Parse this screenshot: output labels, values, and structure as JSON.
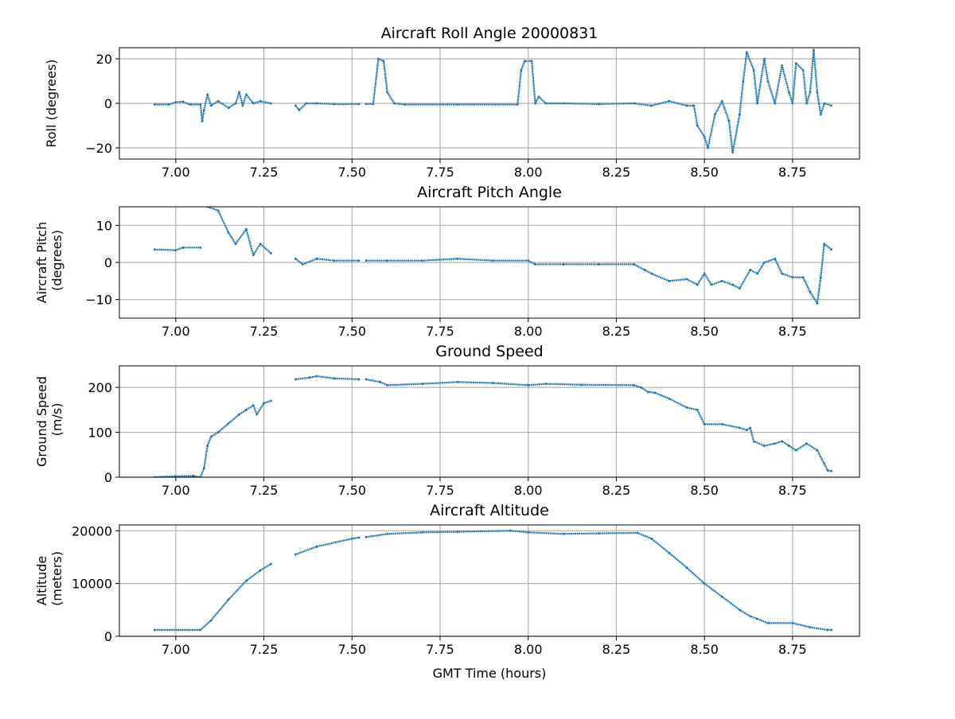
{
  "chart_data": [
    {
      "type": "scatter",
      "title": "Aircraft Roll Angle 20000831",
      "xlabel": "",
      "ylabel": "Roll (degrees)",
      "xlim": [
        6.84,
        8.94
      ],
      "ylim": [
        -25,
        25
      ],
      "xticks": [
        7.0,
        7.25,
        7.5,
        7.75,
        8.0,
        8.25,
        8.5,
        8.75
      ],
      "xtick_labels": [
        "7.00",
        "7.25",
        "7.50",
        "7.75",
        "8.00",
        "8.25",
        "8.50",
        "8.75"
      ],
      "yticks": [
        -20,
        0,
        20
      ],
      "ytick_labels": [
        "−20",
        "0",
        "20"
      ],
      "grid": true,
      "color": "#1f77b4",
      "points": [
        [
          6.94,
          -0.5
        ],
        [
          6.98,
          -0.5
        ],
        [
          7.0,
          0.5
        ],
        [
          7.02,
          0.8
        ],
        [
          7.04,
          -0.5
        ],
        [
          7.07,
          -0.5
        ],
        [
          7.075,
          -8
        ],
        [
          7.08,
          -3
        ],
        [
          7.09,
          4
        ],
        [
          7.1,
          -1
        ],
        [
          7.12,
          1
        ],
        [
          7.15,
          -2
        ],
        [
          7.17,
          0
        ],
        [
          7.18,
          5
        ],
        [
          7.19,
          -1
        ],
        [
          7.2,
          4
        ],
        [
          7.22,
          0
        ],
        [
          7.24,
          1
        ],
        [
          7.27,
          0
        ],
        null,
        [
          7.34,
          -1
        ],
        [
          7.35,
          -3
        ],
        [
          7.37,
          0
        ],
        [
          7.4,
          0
        ],
        [
          7.45,
          -0.3
        ],
        [
          7.52,
          -0.3
        ],
        null,
        [
          7.54,
          -0.3
        ],
        [
          7.56,
          -0.3
        ],
        [
          7.575,
          20
        ],
        [
          7.59,
          19
        ],
        [
          7.6,
          5
        ],
        [
          7.62,
          0
        ],
        [
          7.65,
          -0.5
        ],
        [
          7.8,
          -0.5
        ],
        [
          7.97,
          -0.5
        ],
        [
          7.98,
          15
        ],
        [
          7.99,
          19
        ],
        [
          8.01,
          19
        ],
        [
          8.02,
          0
        ],
        [
          8.03,
          3
        ],
        [
          8.05,
          0
        ],
        [
          8.1,
          0
        ],
        [
          8.2,
          -0.3
        ],
        [
          8.3,
          0
        ],
        [
          8.35,
          -1
        ],
        [
          8.4,
          1
        ],
        [
          8.45,
          -1
        ],
        [
          8.47,
          -1
        ],
        [
          8.48,
          -10
        ],
        [
          8.5,
          -15
        ],
        [
          8.51,
          -20
        ],
        [
          8.53,
          -5
        ],
        [
          8.55,
          1
        ],
        [
          8.57,
          -8
        ],
        [
          8.58,
          -22
        ],
        [
          8.6,
          -5
        ],
        [
          8.61,
          10
        ],
        [
          8.62,
          23
        ],
        [
          8.64,
          15
        ],
        [
          8.65,
          0
        ],
        [
          8.67,
          20
        ],
        [
          8.68,
          10
        ],
        [
          8.7,
          0
        ],
        [
          8.72,
          17
        ],
        [
          8.74,
          5
        ],
        [
          8.75,
          0
        ],
        [
          8.76,
          18
        ],
        [
          8.78,
          15
        ],
        [
          8.79,
          0
        ],
        [
          8.8,
          5
        ],
        [
          8.81,
          24
        ],
        [
          8.82,
          5
        ],
        [
          8.83,
          -5
        ],
        [
          8.84,
          0
        ],
        [
          8.86,
          -1
        ]
      ]
    },
    {
      "type": "scatter",
      "title": "Aircraft Pitch Angle",
      "xlabel": "",
      "ylabel": "Aircraft Pitch (degrees)",
      "xlim": [
        6.84,
        8.94
      ],
      "ylim": [
        -15,
        15
      ],
      "xticks": [
        7.0,
        7.25,
        7.5,
        7.75,
        8.0,
        8.25,
        8.5,
        8.75
      ],
      "xtick_labels": [
        "7.00",
        "7.25",
        "7.50",
        "7.75",
        "8.00",
        "8.25",
        "8.50",
        "8.75"
      ],
      "yticks": [
        -10,
        0,
        10
      ],
      "ytick_labels": [
        "−10",
        "0",
        "10"
      ],
      "grid": true,
      "color": "#1f77b4",
      "points": [
        [
          6.94,
          3.5
        ],
        [
          7.0,
          3.3
        ],
        [
          7.02,
          4
        ],
        [
          7.07,
          4
        ],
        null,
        [
          7.09,
          15
        ],
        [
          7.12,
          14
        ],
        [
          7.15,
          8
        ],
        [
          7.17,
          5
        ],
        [
          7.2,
          9
        ],
        [
          7.22,
          2
        ],
        [
          7.24,
          5
        ],
        [
          7.27,
          2.5
        ],
        null,
        [
          7.34,
          1
        ],
        [
          7.36,
          -0.5
        ],
        [
          7.4,
          1
        ],
        [
          7.45,
          0.5
        ],
        [
          7.52,
          0.5
        ],
        null,
        [
          7.54,
          0.5
        ],
        [
          7.6,
          0.5
        ],
        [
          7.7,
          0.5
        ],
        [
          7.8,
          1
        ],
        [
          7.9,
          0.5
        ],
        [
          8.0,
          0.5
        ],
        [
          8.02,
          -0.5
        ],
        [
          8.1,
          -0.5
        ],
        [
          8.2,
          -0.5
        ],
        [
          8.3,
          -0.5
        ],
        [
          8.33,
          -2
        ],
        [
          8.35,
          -3
        ],
        [
          8.4,
          -5
        ],
        [
          8.45,
          -4.5
        ],
        [
          8.48,
          -6
        ],
        [
          8.5,
          -3
        ],
        [
          8.52,
          -6
        ],
        [
          8.55,
          -5
        ],
        [
          8.58,
          -6
        ],
        [
          8.6,
          -7
        ],
        [
          8.63,
          -2
        ],
        [
          8.65,
          -3
        ],
        [
          8.67,
          0
        ],
        [
          8.7,
          1
        ],
        [
          8.72,
          -3
        ],
        [
          8.75,
          -4
        ],
        [
          8.78,
          -4
        ],
        [
          8.8,
          -8
        ],
        [
          8.82,
          -11
        ],
        [
          8.83,
          -4
        ],
        [
          8.84,
          5
        ],
        [
          8.86,
          3.5
        ]
      ]
    },
    {
      "type": "scatter",
      "title": "Ground Speed",
      "xlabel": "",
      "ylabel": "Ground Speed (m/s)",
      "xlim": [
        6.84,
        8.94
      ],
      "ylim": [
        0,
        248
      ],
      "xticks": [
        7.0,
        7.25,
        7.5,
        7.75,
        8.0,
        8.25,
        8.5,
        8.75
      ],
      "xtick_labels": [
        "7.00",
        "7.25",
        "7.50",
        "7.75",
        "8.00",
        "8.25",
        "8.50",
        "8.75"
      ],
      "yticks": [
        0,
        100,
        200
      ],
      "ytick_labels": [
        "0",
        "100",
        "200"
      ],
      "grid": true,
      "color": "#1f77b4",
      "points": [
        [
          6.94,
          0
        ],
        [
          7.0,
          2
        ],
        [
          7.05,
          3
        ],
        [
          7.07,
          0
        ],
        [
          7.08,
          20
        ],
        [
          7.09,
          70
        ],
        [
          7.1,
          90
        ],
        [
          7.12,
          100
        ],
        [
          7.15,
          120
        ],
        [
          7.18,
          140
        ],
        [
          7.2,
          150
        ],
        [
          7.22,
          160
        ],
        [
          7.23,
          140
        ],
        [
          7.25,
          165
        ],
        [
          7.27,
          170
        ],
        null,
        [
          7.34,
          218
        ],
        [
          7.38,
          222
        ],
        [
          7.4,
          225
        ],
        [
          7.45,
          220
        ],
        [
          7.52,
          218
        ],
        null,
        [
          7.54,
          218
        ],
        [
          7.58,
          212
        ],
        [
          7.6,
          205
        ],
        [
          7.7,
          208
        ],
        [
          7.8,
          212
        ],
        [
          7.9,
          210
        ],
        [
          8.0,
          205
        ],
        [
          8.05,
          208
        ],
        [
          8.15,
          206
        ],
        [
          8.3,
          205
        ],
        [
          8.32,
          200
        ],
        [
          8.34,
          190
        ],
        [
          8.36,
          188
        ],
        [
          8.4,
          175
        ],
        [
          8.45,
          155
        ],
        [
          8.48,
          150
        ],
        [
          8.5,
          118
        ],
        [
          8.55,
          118
        ],
        [
          8.6,
          110
        ],
        [
          8.62,
          105
        ],
        [
          8.63,
          110
        ],
        [
          8.64,
          80
        ],
        [
          8.67,
          70
        ],
        [
          8.7,
          75
        ],
        [
          8.72,
          80
        ],
        [
          8.74,
          70
        ],
        [
          8.76,
          60
        ],
        [
          8.79,
          75
        ],
        [
          8.82,
          60
        ],
        [
          8.84,
          30
        ],
        [
          8.85,
          15
        ],
        [
          8.86,
          14
        ]
      ]
    },
    {
      "type": "scatter",
      "title": "Aircraft Altitude",
      "xlabel": "GMT Time (hours)",
      "ylabel": "Altitude (meters)",
      "xlim": [
        6.84,
        8.94
      ],
      "ylim": [
        0,
        21100
      ],
      "xticks": [
        7.0,
        7.25,
        7.5,
        7.75,
        8.0,
        8.25,
        8.5,
        8.75
      ],
      "xtick_labels": [
        "7.00",
        "7.25",
        "7.50",
        "7.75",
        "8.00",
        "8.25",
        "8.50",
        "8.75"
      ],
      "yticks": [
        0,
        10000,
        20000
      ],
      "ytick_labels": [
        "0",
        "10000",
        "20000"
      ],
      "grid": true,
      "color": "#1f77b4",
      "points": [
        [
          6.94,
          1200
        ],
        [
          7.07,
          1200
        ],
        [
          7.1,
          3000
        ],
        [
          7.15,
          7000
        ],
        [
          7.2,
          10500
        ],
        [
          7.24,
          12500
        ],
        [
          7.27,
          13700
        ],
        null,
        [
          7.34,
          15500
        ],
        [
          7.4,
          17000
        ],
        [
          7.5,
          18500
        ],
        [
          7.52,
          18700
        ],
        null,
        [
          7.54,
          18800
        ],
        [
          7.6,
          19400
        ],
        [
          7.7,
          19700
        ],
        [
          7.8,
          19800
        ],
        [
          7.95,
          20000
        ],
        [
          8.0,
          19700
        ],
        [
          8.1,
          19400
        ],
        [
          8.2,
          19500
        ],
        [
          8.31,
          19600
        ],
        [
          8.35,
          18500
        ],
        [
          8.4,
          15800
        ],
        [
          8.45,
          13000
        ],
        [
          8.5,
          10000
        ],
        [
          8.55,
          7500
        ],
        [
          8.6,
          5000
        ],
        [
          8.63,
          3800
        ],
        [
          8.65,
          3300
        ],
        [
          8.68,
          2500
        ],
        [
          8.75,
          2500
        ],
        [
          8.8,
          1700
        ],
        [
          8.85,
          1200
        ],
        [
          8.86,
          1200
        ]
      ]
    }
  ]
}
